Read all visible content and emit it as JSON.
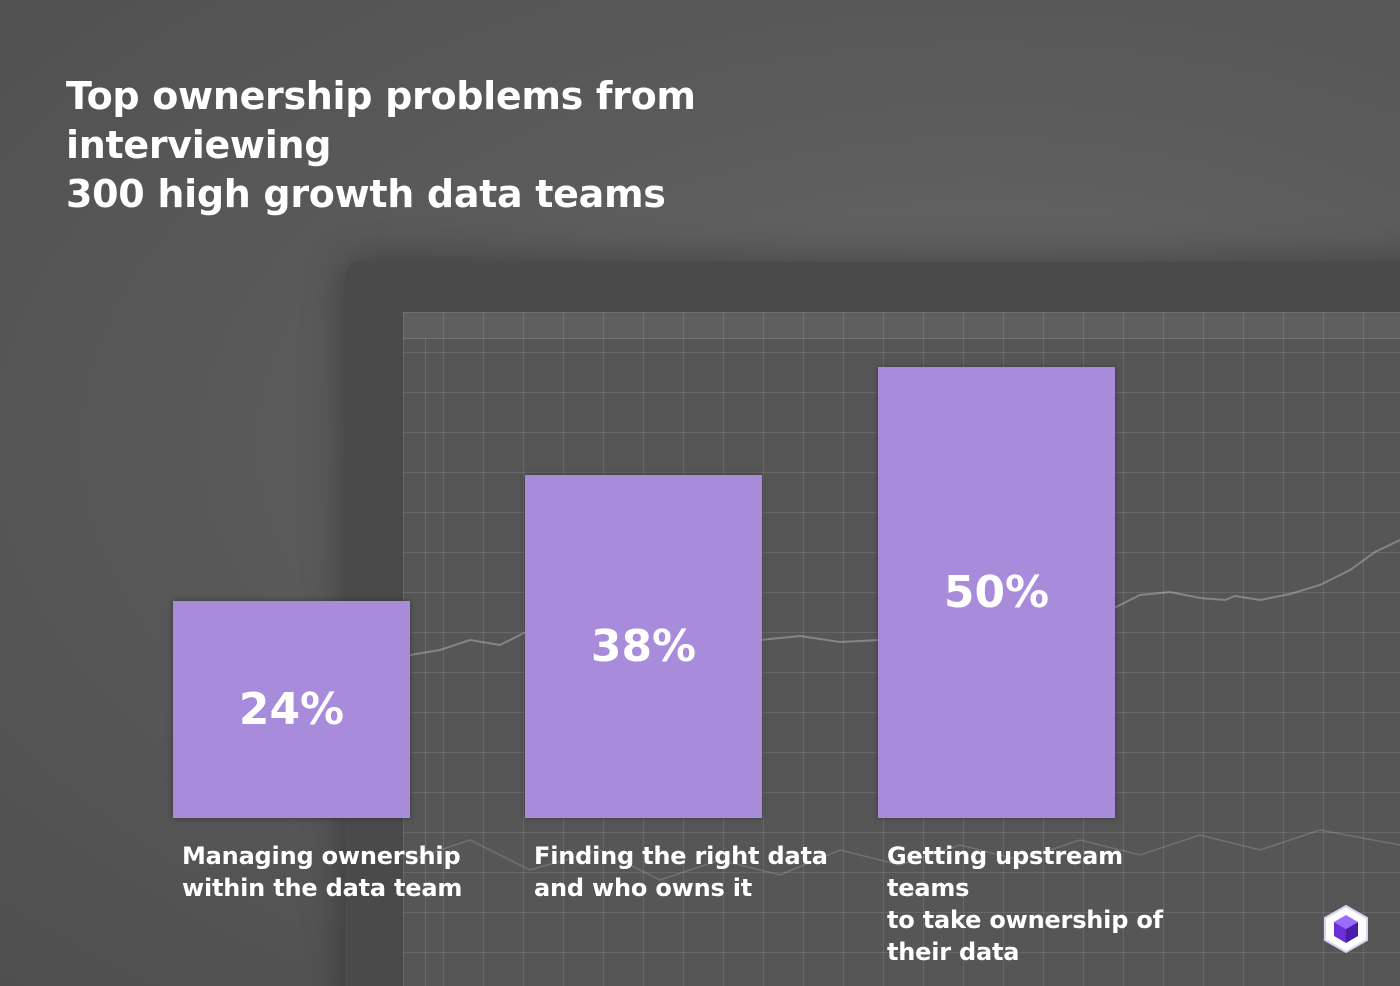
{
  "title_lines": [
    "Top ownership problems from interviewing",
    "300 high growth data teams"
  ],
  "chart_data": {
    "type": "bar",
    "title": "Top ownership problems from interviewing 300 high growth data teams",
    "categories": [
      "Managing ownership within the data team",
      "Finding the right data and who owns it",
      "Getting upstream teams to take ownership of their data"
    ],
    "category_lines": [
      [
        "Managing ownership",
        "within the data team"
      ],
      [
        "Finding the right data",
        "and who owns it"
      ],
      [
        "Getting upstream teams",
        "to take ownership of",
        "their data"
      ]
    ],
    "values": [
      24,
      38,
      50
    ],
    "value_labels": [
      "24%",
      "38%",
      "50%"
    ],
    "unit": "%",
    "ylim": [
      0,
      67
    ],
    "grid": false,
    "legend": "none",
    "colors": {
      "bar": "#a98bdc",
      "background": "#5b5b5b",
      "text": "#ffffff"
    }
  },
  "logo_icon": "hexagon-cube-icon"
}
